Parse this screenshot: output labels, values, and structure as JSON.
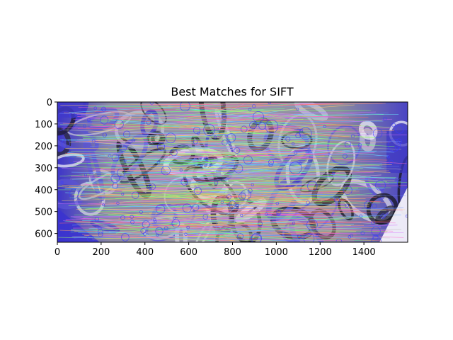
{
  "figure": {
    "title": "Best Matches for SIFT"
  },
  "chart_data": {
    "type": "image",
    "title": "Best Matches for SIFT",
    "xlabel": "",
    "ylabel": "",
    "xlim": [
      0,
      1600
    ],
    "ylim": [
      640,
      0
    ],
    "xticks": [
      0,
      200,
      400,
      600,
      800,
      1000,
      1200,
      1400
    ],
    "yticks": [
      0,
      100,
      200,
      300,
      400,
      500,
      600
    ],
    "xtick_labels": [
      "0",
      "200",
      "400",
      "600",
      "800",
      "1000",
      "1200",
      "1400"
    ],
    "ytick_labels": [
      "0",
      "100",
      "200",
      "300",
      "400",
      "500",
      "600"
    ],
    "grid": false,
    "content": "feature-match-visualization",
    "colors": {
      "image_base": "#8c8ca0",
      "blue_tint": "#3a32d0",
      "dark": "#101018",
      "light": "#e8e8f4"
    }
  }
}
